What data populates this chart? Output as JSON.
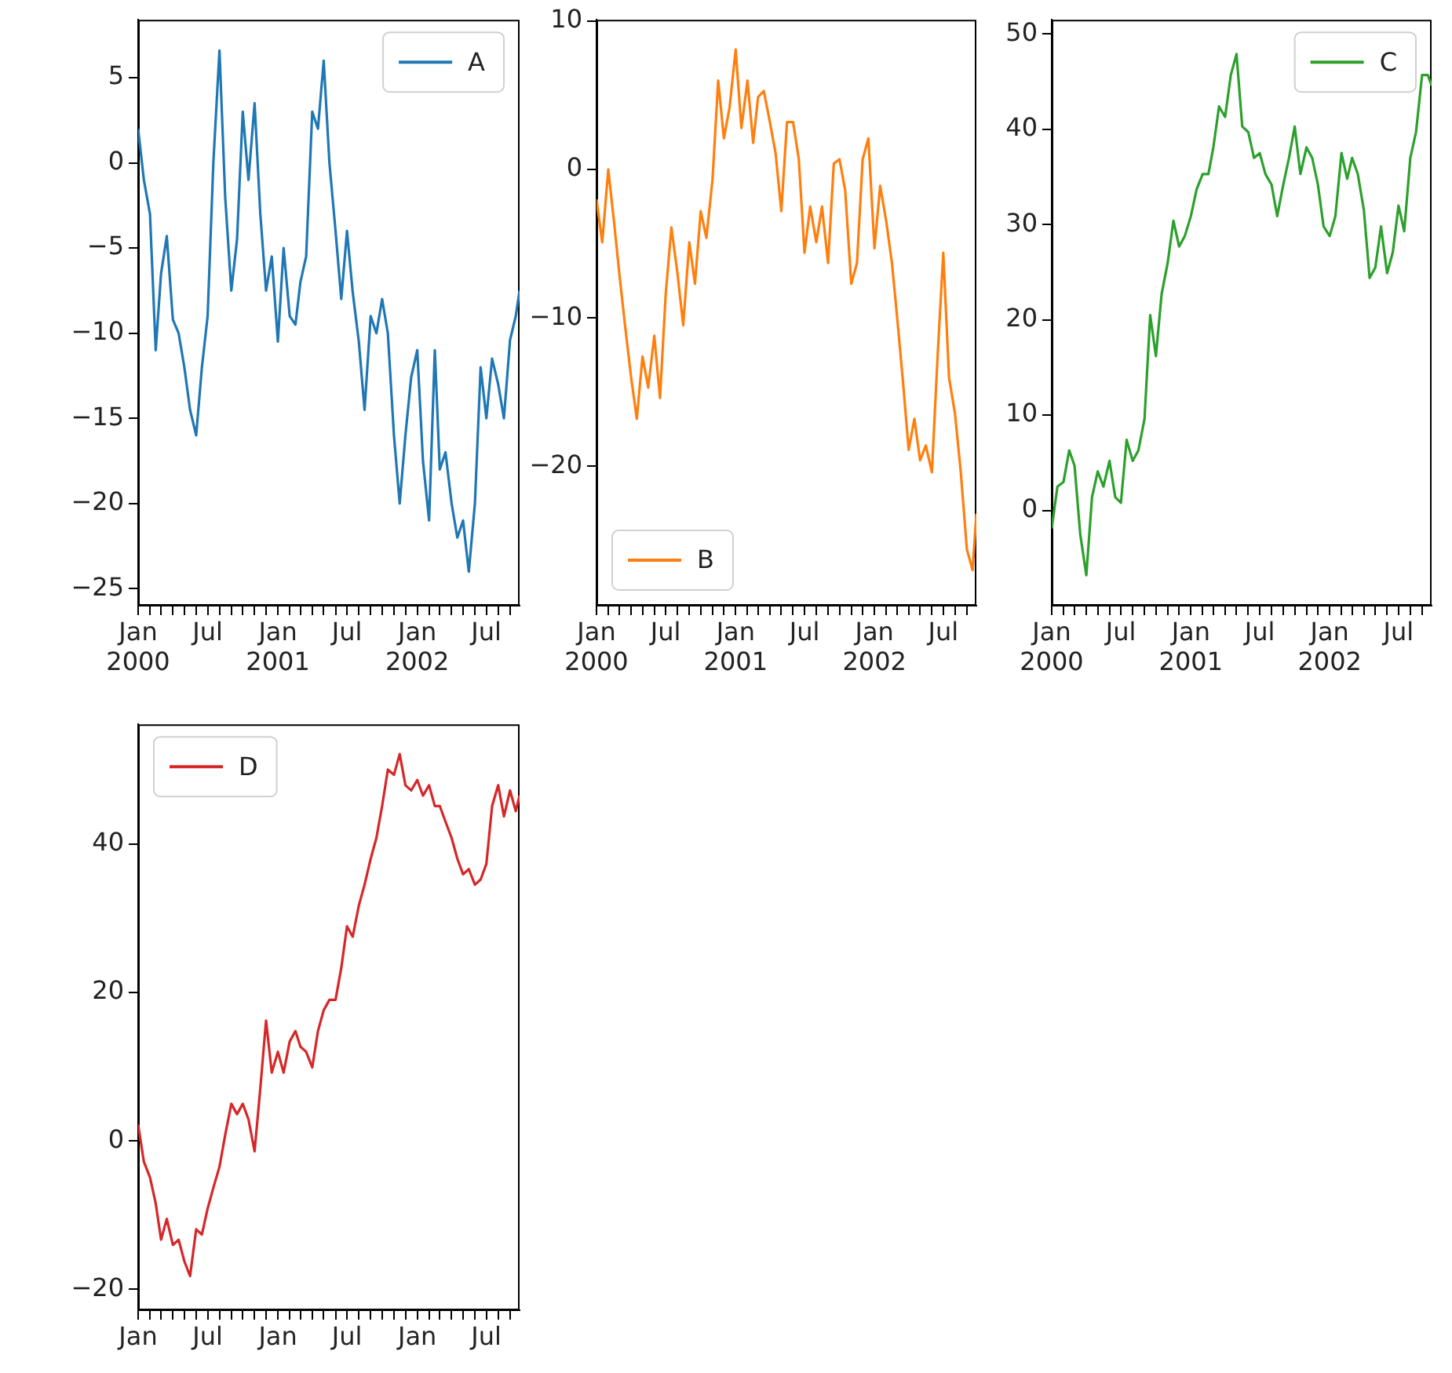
{
  "chart_data": [
    {
      "type": "line",
      "legend": "top right",
      "xlim": [
        "2000-01-01",
        "2002-09-26"
      ],
      "ylim": [
        -26,
        8.4
      ],
      "yticks": [
        -25,
        -20,
        -15,
        -10,
        -5,
        0,
        5
      ],
      "xticks": [
        {
          "value": "2000-01-01",
          "label": "Jan\n2000"
        },
        {
          "value": "2000-02-01",
          "label": null
        },
        {
          "value": "2000-03-01",
          "label": null
        },
        {
          "value": "2000-04-01",
          "label": null
        },
        {
          "value": "2000-05-01",
          "label": null
        },
        {
          "value": "2000-06-01",
          "label": null
        },
        {
          "value": "2000-07-01",
          "label": "Jul"
        },
        {
          "value": "2000-08-01",
          "label": null
        },
        {
          "value": "2000-09-01",
          "label": null
        },
        {
          "value": "2000-10-01",
          "label": null
        },
        {
          "value": "2000-11-01",
          "label": null
        },
        {
          "value": "2000-12-01",
          "label": null
        },
        {
          "value": "2001-01-01",
          "label": "Jan\n2001"
        },
        {
          "value": "2001-02-01",
          "label": null
        },
        {
          "value": "2001-03-01",
          "label": null
        },
        {
          "value": "2001-04-01",
          "label": null
        },
        {
          "value": "2001-05-01",
          "label": null
        },
        {
          "value": "2001-06-01",
          "label": null
        },
        {
          "value": "2001-07-01",
          "label": "Jul"
        },
        {
          "value": "2001-08-01",
          "label": null
        },
        {
          "value": "2001-09-01",
          "label": null
        },
        {
          "value": "2001-10-01",
          "label": null
        },
        {
          "value": "2001-11-01",
          "label": null
        },
        {
          "value": "2001-12-01",
          "label": null
        },
        {
          "value": "2002-01-01",
          "label": "Jan\n2002"
        },
        {
          "value": "2002-02-01",
          "label": null
        },
        {
          "value": "2002-03-01",
          "label": null
        },
        {
          "value": "2002-04-01",
          "label": null
        },
        {
          "value": "2002-05-01",
          "label": null
        },
        {
          "value": "2002-06-01",
          "label": null
        },
        {
          "value": "2002-07-01",
          "label": "Jul"
        },
        {
          "value": "2002-08-01",
          "label": null
        },
        {
          "value": "2002-09-01",
          "label": null
        }
      ],
      "x": [
        "2000-01-01",
        "2000-01-16",
        "2000-02-01",
        "2000-02-16",
        "2000-03-01",
        "2000-03-16",
        "2000-04-01",
        "2000-04-16",
        "2000-05-01",
        "2000-05-16",
        "2000-06-01",
        "2000-06-16",
        "2000-07-01",
        "2000-07-16",
        "2000-08-01",
        "2000-08-16",
        "2000-09-01",
        "2000-09-16",
        "2000-10-01",
        "2000-10-16",
        "2000-11-01",
        "2000-11-16",
        "2000-12-01",
        "2000-12-16",
        "2001-01-01",
        "2001-01-16",
        "2001-02-01",
        "2001-02-16",
        "2001-03-01",
        "2001-03-16",
        "2001-04-01",
        "2001-04-16",
        "2001-05-01",
        "2001-05-16",
        "2001-06-01",
        "2001-06-16",
        "2001-07-01",
        "2001-07-16",
        "2001-08-01",
        "2001-08-16",
        "2001-09-01",
        "2001-09-16",
        "2001-10-01",
        "2001-10-16",
        "2001-11-01",
        "2001-11-16",
        "2001-12-01",
        "2001-12-16",
        "2002-01-01",
        "2002-01-16",
        "2002-02-01",
        "2002-02-16",
        "2002-03-01",
        "2002-03-16",
        "2002-04-01",
        "2002-04-16",
        "2002-05-01",
        "2002-05-16",
        "2002-06-01",
        "2002-06-16",
        "2002-07-01",
        "2002-07-16",
        "2002-08-01",
        "2002-08-16",
        "2002-09-01",
        "2002-09-16",
        "2002-09-26"
      ],
      "series": [
        {
          "name": "A",
          "color": "#1f77b4",
          "values": [
            2,
            -1,
            -3,
            -11,
            -6.5,
            -4.3,
            -9.2,
            -10,
            -12,
            -14.5,
            -16,
            -12,
            -9,
            0,
            6.6,
            -2,
            -7.5,
            -4.5,
            3,
            -1,
            3.5,
            -3,
            -7.5,
            -5.5,
            -10.5,
            -5,
            -9,
            -9.5,
            -7,
            -5.5,
            3,
            2,
            6,
            0,
            -4,
            -8,
            -4,
            -7.6,
            -10.5,
            -14.5,
            -9,
            -10,
            -8,
            -10,
            -16,
            -20,
            -16,
            -12.6,
            -11,
            -17.5,
            -21,
            -11,
            -18,
            -17,
            -20,
            -22,
            -21,
            -24,
            -20,
            -12,
            -15,
            -11.5,
            -13,
            -15,
            -10.4,
            -9,
            -7.5
          ]
        }
      ]
    },
    {
      "type": "line",
      "legend": "bottom left",
      "xlim": [
        "2000-01-01",
        "2002-09-26"
      ],
      "ylim": [
        -29.4,
        10.1
      ],
      "yticks": [
        -20,
        -10,
        0,
        10
      ],
      "xticks": [
        {
          "value": "2000-01-01",
          "label": "Jan\n2000"
        },
        {
          "value": "2000-02-01",
          "label": null
        },
        {
          "value": "2000-03-01",
          "label": null
        },
        {
          "value": "2000-04-01",
          "label": null
        },
        {
          "value": "2000-05-01",
          "label": null
        },
        {
          "value": "2000-06-01",
          "label": null
        },
        {
          "value": "2000-07-01",
          "label": "Jul"
        },
        {
          "value": "2000-08-01",
          "label": null
        },
        {
          "value": "2000-09-01",
          "label": null
        },
        {
          "value": "2000-10-01",
          "label": null
        },
        {
          "value": "2000-11-01",
          "label": null
        },
        {
          "value": "2000-12-01",
          "label": null
        },
        {
          "value": "2001-01-01",
          "label": "Jan\n2001"
        },
        {
          "value": "2001-02-01",
          "label": null
        },
        {
          "value": "2001-03-01",
          "label": null
        },
        {
          "value": "2001-04-01",
          "label": null
        },
        {
          "value": "2001-05-01",
          "label": null
        },
        {
          "value": "2001-06-01",
          "label": null
        },
        {
          "value": "2001-07-01",
          "label": "Jul"
        },
        {
          "value": "2001-08-01",
          "label": null
        },
        {
          "value": "2001-09-01",
          "label": null
        },
        {
          "value": "2001-10-01",
          "label": null
        },
        {
          "value": "2001-11-01",
          "label": null
        },
        {
          "value": "2001-12-01",
          "label": null
        },
        {
          "value": "2002-01-01",
          "label": "Jan\n2002"
        },
        {
          "value": "2002-02-01",
          "label": null
        },
        {
          "value": "2002-03-01",
          "label": null
        },
        {
          "value": "2002-04-01",
          "label": null
        },
        {
          "value": "2002-05-01",
          "label": null
        },
        {
          "value": "2002-06-01",
          "label": null
        },
        {
          "value": "2002-07-01",
          "label": "Jul"
        },
        {
          "value": "2002-08-01",
          "label": null
        },
        {
          "value": "2002-09-01",
          "label": null
        }
      ],
      "x": [
        "2000-01-01",
        "2000-01-16",
        "2000-02-01",
        "2000-02-16",
        "2000-03-01",
        "2000-03-16",
        "2000-04-01",
        "2000-04-16",
        "2000-05-01",
        "2000-05-16",
        "2000-06-01",
        "2000-06-16",
        "2000-07-01",
        "2000-07-16",
        "2000-08-01",
        "2000-08-16",
        "2000-09-01",
        "2000-09-16",
        "2000-10-01",
        "2000-10-16",
        "2000-11-01",
        "2000-11-16",
        "2000-12-01",
        "2000-12-16",
        "2001-01-01",
        "2001-01-16",
        "2001-02-01",
        "2001-02-16",
        "2001-03-01",
        "2001-03-16",
        "2001-04-01",
        "2001-04-16",
        "2001-05-01",
        "2001-05-16",
        "2001-06-01",
        "2001-06-16",
        "2001-07-01",
        "2001-07-16",
        "2001-08-01",
        "2001-08-16",
        "2001-09-01",
        "2001-09-16",
        "2001-10-01",
        "2001-10-16",
        "2001-11-01",
        "2001-11-16",
        "2001-12-01",
        "2001-12-16",
        "2002-01-01",
        "2002-01-16",
        "2002-02-01",
        "2002-02-16",
        "2002-03-01",
        "2002-03-16",
        "2002-04-01",
        "2002-04-16",
        "2002-05-01",
        "2002-05-16",
        "2002-06-01",
        "2002-06-16",
        "2002-07-01",
        "2002-07-16",
        "2002-08-01",
        "2002-08-16",
        "2002-09-01",
        "2002-09-16",
        "2002-09-26"
      ],
      "series": [
        {
          "name": "B",
          "color": "#ff7f0e",
          "values": [
            -2,
            -4.9,
            0,
            -3.5,
            -7,
            -10.5,
            -14,
            -16.8,
            -12.6,
            -14.7,
            -11.2,
            -15.4,
            -8.4,
            -3.9,
            -7,
            -10.5,
            -4.9,
            -7.7,
            -2.8,
            -4.6,
            -0.7,
            6,
            2.1,
            4.2,
            8.1,
            2.8,
            6,
            1.8,
            4.9,
            5.3,
            3.2,
            1.1,
            -2.8,
            3.2,
            3.2,
            0.7,
            -5.6,
            -2.5,
            -4.9,
            -2.5,
            -6.3,
            0.4,
            0.7,
            -1.4,
            -7.7,
            -6.3,
            0.7,
            2.1,
            -5.3,
            -1.1,
            -3.5,
            -6.3,
            -9.8,
            -14,
            -18.9,
            -16.8,
            -19.6,
            -18.6,
            -20.4,
            -12.6,
            -5.6,
            -14,
            -16.5,
            -20.4,
            -25.6,
            -27,
            -23.2
          ]
        }
      ]
    },
    {
      "type": "line",
      "legend": "top right",
      "xlim": [
        "2000-01-01",
        "2002-09-26"
      ],
      "ylim": [
        -10,
        51.5
      ],
      "yticks": [
        0,
        10,
        20,
        30,
        40,
        50
      ],
      "xticks": [
        {
          "value": "2000-01-01",
          "label": "Jan\n2000"
        },
        {
          "value": "2000-02-01",
          "label": null
        },
        {
          "value": "2000-03-01",
          "label": null
        },
        {
          "value": "2000-04-01",
          "label": null
        },
        {
          "value": "2000-05-01",
          "label": null
        },
        {
          "value": "2000-06-01",
          "label": null
        },
        {
          "value": "2000-07-01",
          "label": "Jul"
        },
        {
          "value": "2000-08-01",
          "label": null
        },
        {
          "value": "2000-09-01",
          "label": null
        },
        {
          "value": "2000-10-01",
          "label": null
        },
        {
          "value": "2000-11-01",
          "label": null
        },
        {
          "value": "2000-12-01",
          "label": null
        },
        {
          "value": "2001-01-01",
          "label": "Jan\n2001"
        },
        {
          "value": "2001-02-01",
          "label": null
        },
        {
          "value": "2001-03-01",
          "label": null
        },
        {
          "value": "2001-04-01",
          "label": null
        },
        {
          "value": "2001-05-01",
          "label": null
        },
        {
          "value": "2001-06-01",
          "label": null
        },
        {
          "value": "2001-07-01",
          "label": "Jul"
        },
        {
          "value": "2001-08-01",
          "label": null
        },
        {
          "value": "2001-09-01",
          "label": null
        },
        {
          "value": "2001-10-01",
          "label": null
        },
        {
          "value": "2001-11-01",
          "label": null
        },
        {
          "value": "2001-12-01",
          "label": null
        },
        {
          "value": "2002-01-01",
          "label": "Jan\n2002"
        },
        {
          "value": "2002-02-01",
          "label": null
        },
        {
          "value": "2002-03-01",
          "label": null
        },
        {
          "value": "2002-04-01",
          "label": null
        },
        {
          "value": "2002-05-01",
          "label": null
        },
        {
          "value": "2002-06-01",
          "label": null
        },
        {
          "value": "2002-07-01",
          "label": "Jul"
        },
        {
          "value": "2002-08-01",
          "label": null
        },
        {
          "value": "2002-09-01",
          "label": null
        }
      ],
      "x": [
        "2000-01-01",
        "2000-01-16",
        "2000-02-01",
        "2000-02-16",
        "2000-03-01",
        "2000-03-16",
        "2000-04-01",
        "2000-04-16",
        "2000-05-01",
        "2000-05-16",
        "2000-06-01",
        "2000-06-16",
        "2000-07-01",
        "2000-07-16",
        "2000-08-01",
        "2000-08-16",
        "2000-09-01",
        "2000-09-16",
        "2000-10-01",
        "2000-10-16",
        "2000-11-01",
        "2000-11-16",
        "2000-12-01",
        "2000-12-16",
        "2001-01-01",
        "2001-01-16",
        "2001-02-01",
        "2001-02-16",
        "2001-03-01",
        "2001-03-16",
        "2001-04-01",
        "2001-04-16",
        "2001-05-01",
        "2001-05-16",
        "2001-06-01",
        "2001-06-16",
        "2001-07-01",
        "2001-07-16",
        "2001-08-01",
        "2001-08-16",
        "2001-09-01",
        "2001-09-16",
        "2001-10-01",
        "2001-10-16",
        "2001-11-01",
        "2001-11-16",
        "2001-12-01",
        "2001-12-16",
        "2002-01-01",
        "2002-01-16",
        "2002-02-01",
        "2002-02-16",
        "2002-03-01",
        "2002-03-16",
        "2002-04-01",
        "2002-04-16",
        "2002-05-01",
        "2002-05-16",
        "2002-06-01",
        "2002-06-16",
        "2002-07-01",
        "2002-07-16",
        "2002-08-01",
        "2002-08-16",
        "2002-09-01",
        "2002-09-16",
        "2002-09-26"
      ],
      "series": [
        {
          "name": "C",
          "color": "#2ca02c",
          "values": [
            -1.9,
            2.5,
            3,
            6.3,
            4.7,
            -2.5,
            -6.8,
            1.4,
            4.1,
            2.5,
            5.2,
            1.4,
            0.8,
            7.4,
            5.2,
            6.3,
            9.6,
            20.5,
            16.2,
            22.7,
            26,
            30.4,
            27.7,
            28.8,
            30.9,
            33.7,
            35.3,
            35.3,
            38.1,
            42.4,
            41.3,
            45.7,
            47.9,
            40.3,
            39.7,
            37,
            37.5,
            35.3,
            34.2,
            30.9,
            34.2,
            37,
            40.3,
            35.3,
            38.1,
            37,
            34.2,
            29.8,
            28.8,
            30.9,
            37.5,
            34.8,
            37,
            35.3,
            31.5,
            24.4,
            25.5,
            29.8,
            24.9,
            27.1,
            32,
            29.3,
            37,
            39.7,
            45.7,
            45.7,
            44.6
          ]
        }
      ]
    },
    {
      "type": "line",
      "legend": "top left",
      "xlim": [
        "2000-01-01",
        "2002-09-26"
      ],
      "ylim": [
        -22.8,
        56.1
      ],
      "yticks": [
        -20,
        0,
        20,
        40
      ],
      "xticks": [
        {
          "value": "2000-01-01",
          "label": "Jan"
        },
        {
          "value": "2000-02-01",
          "label": null
        },
        {
          "value": "2000-03-01",
          "label": null
        },
        {
          "value": "2000-04-01",
          "label": null
        },
        {
          "value": "2000-05-01",
          "label": null
        },
        {
          "value": "2000-06-01",
          "label": null
        },
        {
          "value": "2000-07-01",
          "label": "Jul"
        },
        {
          "value": "2000-08-01",
          "label": null
        },
        {
          "value": "2000-09-01",
          "label": null
        },
        {
          "value": "2000-10-01",
          "label": null
        },
        {
          "value": "2000-11-01",
          "label": null
        },
        {
          "value": "2000-12-01",
          "label": null
        },
        {
          "value": "2001-01-01",
          "label": "Jan"
        },
        {
          "value": "2001-02-01",
          "label": null
        },
        {
          "value": "2001-03-01",
          "label": null
        },
        {
          "value": "2001-04-01",
          "label": null
        },
        {
          "value": "2001-05-01",
          "label": null
        },
        {
          "value": "2001-06-01",
          "label": null
        },
        {
          "value": "2001-07-01",
          "label": "Jul"
        },
        {
          "value": "2001-08-01",
          "label": null
        },
        {
          "value": "2001-09-01",
          "label": null
        },
        {
          "value": "2001-10-01",
          "label": null
        },
        {
          "value": "2001-11-01",
          "label": null
        },
        {
          "value": "2001-12-01",
          "label": null
        },
        {
          "value": "2002-01-01",
          "label": "Jan"
        },
        {
          "value": "2002-02-01",
          "label": null
        },
        {
          "value": "2002-03-01",
          "label": null
        },
        {
          "value": "2002-04-01",
          "label": null
        },
        {
          "value": "2002-05-01",
          "label": null
        },
        {
          "value": "2002-06-01",
          "label": null
        },
        {
          "value": "2002-07-01",
          "label": "Jul"
        },
        {
          "value": "2002-08-01",
          "label": null
        },
        {
          "value": "2002-09-01",
          "label": null
        }
      ],
      "x": [
        "2000-01-01",
        "2000-01-16",
        "2000-02-01",
        "2000-02-16",
        "2000-03-01",
        "2000-03-16",
        "2000-04-01",
        "2000-04-16",
        "2000-05-01",
        "2000-05-16",
        "2000-06-01",
        "2000-06-16",
        "2000-07-01",
        "2000-07-16",
        "2000-08-01",
        "2000-08-16",
        "2000-09-01",
        "2000-09-16",
        "2000-10-01",
        "2000-10-16",
        "2000-11-01",
        "2000-11-16",
        "2000-12-01",
        "2000-12-16",
        "2001-01-01",
        "2001-01-16",
        "2001-02-01",
        "2001-02-16",
        "2001-03-01",
        "2001-03-16",
        "2001-04-01",
        "2001-04-16",
        "2001-05-01",
        "2001-05-16",
        "2001-06-01",
        "2001-06-16",
        "2001-07-01",
        "2001-07-16",
        "2001-08-01",
        "2001-08-16",
        "2001-09-01",
        "2001-09-16",
        "2001-10-01",
        "2001-10-16",
        "2001-11-01",
        "2001-11-16",
        "2001-12-01",
        "2001-12-16",
        "2002-01-01",
        "2002-01-16",
        "2002-02-01",
        "2002-02-16",
        "2002-03-01",
        "2002-03-16",
        "2002-04-01",
        "2002-04-16",
        "2002-05-01",
        "2002-05-16",
        "2002-06-01",
        "2002-06-16",
        "2002-07-01",
        "2002-07-16",
        "2002-08-01",
        "2002-08-16",
        "2002-09-01",
        "2002-09-16",
        "2002-09-26"
      ],
      "series": [
        {
          "name": "D",
          "color": "#d62728",
          "values": [
            2.2,
            -2.8,
            -4.9,
            -8.4,
            -13.3,
            -10.5,
            -14,
            -13.3,
            -16.2,
            -18.2,
            -11.9,
            -12.6,
            -9.1,
            -6.3,
            -3.5,
            0.8,
            5,
            3.6,
            5,
            2.9,
            -1.4,
            7.1,
            16.2,
            9.2,
            12,
            9.2,
            13.4,
            14.8,
            12.7,
            12,
            9.9,
            14.8,
            17.6,
            19,
            19,
            23.3,
            28.9,
            27.5,
            31.7,
            34.5,
            38,
            40.8,
            45.1,
            50,
            49.3,
            52.1,
            47.9,
            47.2,
            48.6,
            46.5,
            47.9,
            45.1,
            45.1,
            43,
            40.8,
            38,
            35.9,
            36.6,
            34.5,
            35.2,
            37.3,
            45.1,
            47.9,
            43.7,
            47.2,
            44.4,
            46.5
          ]
        }
      ]
    }
  ]
}
